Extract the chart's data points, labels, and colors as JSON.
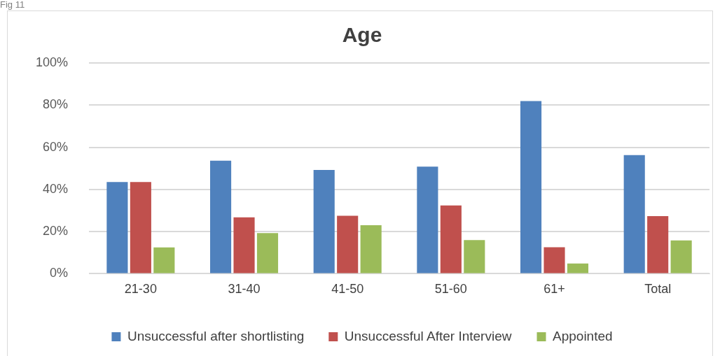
{
  "chart_data": {
    "type": "bar",
    "title": "Age",
    "annotations": [
      "Fig 11"
    ],
    "categories": [
      "21-30",
      "31-40",
      "41-50",
      "51-60",
      "61+",
      "Total"
    ],
    "series": [
      {
        "name": "Unsuccessful after shortlisting",
        "color": "#4f81bd",
        "values": [
          43.5,
          53.6,
          49.2,
          50.8,
          81.9,
          56.3
        ]
      },
      {
        "name": "Unsuccessful After Interview",
        "color": "#c0504d",
        "values": [
          43.5,
          26.8,
          27.5,
          32.4,
          12.6,
          27.3
        ]
      },
      {
        "name": "Appointed",
        "color": "#9bbb59",
        "values": [
          12.5,
          19.3,
          23.0,
          16.0,
          4.9,
          15.8
        ]
      }
    ],
    "ylim": [
      0,
      100
    ],
    "yticks": [
      {
        "value": 0,
        "label": "0%"
      },
      {
        "value": 20,
        "label": "20%"
      },
      {
        "value": 40,
        "label": "40%"
      },
      {
        "value": 60,
        "label": "60%"
      },
      {
        "value": 80,
        "label": "80%"
      },
      {
        "value": 100,
        "label": "100%"
      }
    ],
    "grid": "y",
    "legend": "bottom"
  }
}
